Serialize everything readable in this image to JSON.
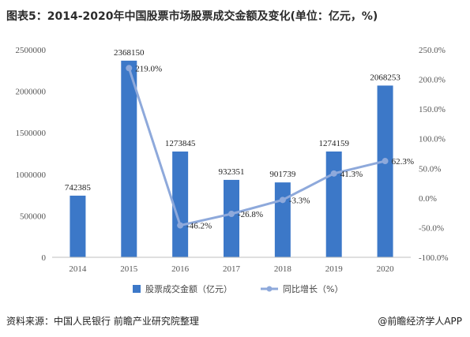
{
  "title": "图表5：2014-2020年中国股票市场股票成交金额及变化(单位：亿元，%)",
  "source": "资料来源：中国人民银行 前瞻产业研究院整理",
  "brand": "@前瞻经济学人APP",
  "colors": {
    "bar": "#3C78C8",
    "line": "#8EA9DB",
    "grid": "#e6e6e6"
  },
  "chart_data": {
    "type": "bar",
    "categories": [
      "2014",
      "2015",
      "2016",
      "2017",
      "2018",
      "2019",
      "2020"
    ],
    "series": [
      {
        "name": "股票成交金额（亿元）",
        "type": "bar",
        "axis": "left",
        "values": [
          742385,
          2368150,
          1273845,
          932351,
          901739,
          1274159,
          2068253
        ],
        "labels": [
          "742385",
          "2368150",
          "1273845",
          "932351",
          "901739",
          "1274159",
          "2068253"
        ]
      },
      {
        "name": "同比增长（%）",
        "type": "line",
        "axis": "right",
        "values": [
          null,
          219.0,
          -46.2,
          -26.8,
          -3.3,
          41.3,
          62.3
        ],
        "labels": [
          "",
          "219.0%",
          "-46.2%",
          "-26.8%",
          "-3.3%",
          "41.3%",
          "62.3%"
        ]
      }
    ],
    "left_axis": {
      "ylim": [
        0,
        2500000
      ],
      "ticks": [
        0,
        500000,
        1000000,
        1500000,
        2000000,
        2500000
      ],
      "tick_labels": [
        "0",
        "500000",
        "1000000",
        "1500000",
        "2000000",
        "2500000"
      ]
    },
    "right_axis": {
      "ylim": [
        -100,
        250
      ],
      "ticks": [
        -100,
        -50,
        0,
        50,
        100,
        150,
        200,
        250
      ],
      "tick_labels": [
        "-100.0%",
        "-50.0%",
        "0.0%",
        "50.0%",
        "100.0%",
        "150.0%",
        "200.0%",
        "250.0%"
      ]
    },
    "legend": {
      "position": "bottom",
      "entries": [
        "股票成交金额（亿元）",
        "同比增长（%）"
      ]
    },
    "grid": false
  }
}
